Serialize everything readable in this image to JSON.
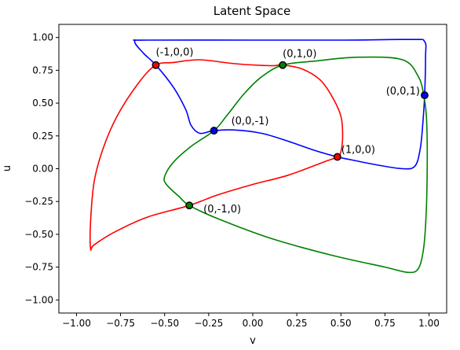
{
  "chart_data": {
    "type": "line",
    "title": "Latent Space",
    "xlabel": "v",
    "ylabel": "u",
    "xlim": [
      -1.1,
      1.1
    ],
    "ylim": [
      -1.1,
      1.1
    ],
    "xticks": [
      -1.0,
      -0.75,
      -0.5,
      -0.25,
      0.0,
      0.25,
      0.5,
      0.75,
      1.0
    ],
    "yticks": [
      -1.0,
      -0.75,
      -0.5,
      -0.25,
      0.0,
      0.25,
      0.5,
      0.75,
      1.0
    ],
    "xtick_labels": [
      "−1.00",
      "−0.75",
      "−0.50",
      "−0.25",
      "0.00",
      "0.25",
      "0.50",
      "0.75",
      "1.00"
    ],
    "ytick_labels": [
      "−1.00",
      "−0.75",
      "−0.50",
      "−0.25",
      "0.00",
      "0.25",
      "0.50",
      "0.75",
      "1.00"
    ],
    "grid": false,
    "series": [
      {
        "color": "#0000ff",
        "points": [
          [
            -0.55,
            0.79
          ],
          [
            -0.62,
            0.88
          ],
          [
            -0.67,
            0.97
          ],
          [
            -0.6,
            0.98
          ],
          [
            0.0,
            0.98
          ],
          [
            0.5,
            0.98
          ],
          [
            0.9,
            0.985
          ],
          [
            0.975,
            0.97
          ],
          [
            0.98,
            0.85
          ],
          [
            0.975,
            0.56
          ],
          [
            0.965,
            0.35
          ],
          [
            0.95,
            0.15
          ],
          [
            0.92,
            0.02
          ],
          [
            0.85,
            0.0
          ],
          [
            0.7,
            0.03
          ],
          [
            0.55,
            0.07
          ],
          [
            0.48,
            0.09
          ],
          [
            0.35,
            0.14
          ],
          [
            0.2,
            0.21
          ],
          [
            0.05,
            0.27
          ],
          [
            -0.1,
            0.295
          ],
          [
            -0.22,
            0.29
          ],
          [
            -0.3,
            0.27
          ],
          [
            -0.35,
            0.33
          ],
          [
            -0.38,
            0.45
          ],
          [
            -0.45,
            0.62
          ],
          [
            -0.55,
            0.79
          ]
        ]
      },
      {
        "color": "#008000",
        "points": [
          [
            0.97,
            0.56
          ],
          [
            0.94,
            0.7
          ],
          [
            0.85,
            0.83
          ],
          [
            0.6,
            0.85
          ],
          [
            0.35,
            0.82
          ],
          [
            0.17,
            0.79
          ],
          [
            0.05,
            0.7
          ],
          [
            -0.05,
            0.57
          ],
          [
            -0.15,
            0.4
          ],
          [
            -0.22,
            0.29
          ],
          [
            -0.35,
            0.17
          ],
          [
            -0.45,
            0.05
          ],
          [
            -0.5,
            -0.06
          ],
          [
            -0.49,
            -0.12
          ],
          [
            -0.42,
            -0.21
          ],
          [
            -0.36,
            -0.28
          ],
          [
            -0.2,
            -0.38
          ],
          [
            0.1,
            -0.53
          ],
          [
            0.45,
            -0.66
          ],
          [
            0.75,
            -0.75
          ],
          [
            0.88,
            -0.79
          ],
          [
            0.94,
            -0.76
          ],
          [
            0.97,
            -0.6
          ],
          [
            0.985,
            -0.3
          ],
          [
            0.99,
            0.1
          ],
          [
            0.985,
            0.4
          ],
          [
            0.97,
            0.56
          ]
        ]
      },
      {
        "color": "#ff0000",
        "points": [
          [
            -0.55,
            0.79
          ],
          [
            -0.45,
            0.81
          ],
          [
            -0.3,
            0.83
          ],
          [
            -0.1,
            0.8
          ],
          [
            0.1,
            0.785
          ],
          [
            0.17,
            0.79
          ],
          [
            0.28,
            0.76
          ],
          [
            0.38,
            0.68
          ],
          [
            0.45,
            0.55
          ],
          [
            0.5,
            0.4
          ],
          [
            0.51,
            0.25
          ],
          [
            0.5,
            0.13
          ],
          [
            0.48,
            0.09
          ],
          [
            0.4,
            0.05
          ],
          [
            0.2,
            -0.05
          ],
          [
            0.0,
            -0.12
          ],
          [
            -0.2,
            -0.2
          ],
          [
            -0.36,
            -0.28
          ],
          [
            -0.6,
            -0.37
          ],
          [
            -0.78,
            -0.48
          ],
          [
            -0.9,
            -0.58
          ],
          [
            -0.92,
            -0.61
          ],
          [
            -0.92,
            -0.4
          ],
          [
            -0.9,
            -0.1
          ],
          [
            -0.85,
            0.15
          ],
          [
            -0.77,
            0.4
          ],
          [
            -0.65,
            0.65
          ],
          [
            -0.55,
            0.79
          ]
        ]
      }
    ],
    "markers": [
      {
        "x": -0.55,
        "y": 0.79,
        "label": "(-1,0,0)",
        "face": "#ff0000"
      },
      {
        "x": 0.17,
        "y": 0.79,
        "label": "(0,1,0)",
        "face": "#008000"
      },
      {
        "x": -0.22,
        "y": 0.29,
        "label": "(0,0,-1)",
        "face": "#0000ff"
      },
      {
        "x": 0.48,
        "y": 0.09,
        "label": "(1,0,0)",
        "face": "#ff0000"
      },
      {
        "x": -0.36,
        "y": -0.28,
        "label": "(0,-1,0)",
        "face": "#008000"
      },
      {
        "x": 0.975,
        "y": 0.56,
        "label": "(0,0,1)",
        "face": "#0000ff"
      }
    ]
  }
}
